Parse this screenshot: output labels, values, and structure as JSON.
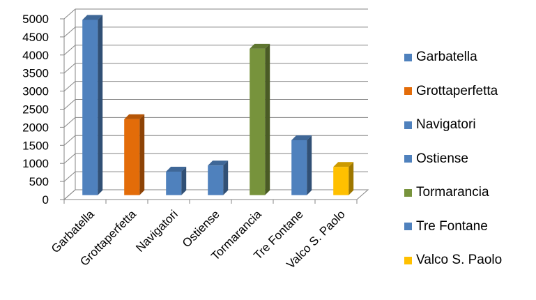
{
  "chart_data": {
    "type": "bar",
    "categories": [
      "Garbatella",
      "Grottaperfetta",
      "Navigatori",
      "Ostiense",
      "Tormarancia",
      "Tre Fontane",
      "Valco S. Paolo"
    ],
    "values": [
      4850,
      2100,
      650,
      820,
      4050,
      1520,
      780
    ],
    "colors": [
      "#4f81bd",
      "#e36c09",
      "#4f81bd",
      "#4f81bd",
      "#77933c",
      "#4f81bd",
      "#ffc000"
    ],
    "ylim": [
      0,
      5000
    ],
    "yticks": [
      "0",
      "500",
      "1000",
      "1500",
      "2000",
      "2500",
      "3000",
      "3500",
      "4000",
      "4500",
      "5000"
    ],
    "grid": true,
    "legend_position": "right",
    "title": "",
    "xlabel": "",
    "ylabel": ""
  },
  "legend": [
    {
      "label": "Garbatella",
      "color": "#4f81bd"
    },
    {
      "label": "Grottaperfetta",
      "color": "#e36c09"
    },
    {
      "label": "Navigatori",
      "color": "#4f81bd"
    },
    {
      "label": "Ostiense",
      "color": "#4f81bd"
    },
    {
      "label": "Tormarancia",
      "color": "#77933c"
    },
    {
      "label": "Tre Fontane",
      "color": "#4f81bd"
    },
    {
      "label": "Valco S. Paolo",
      "color": "#ffc000"
    }
  ]
}
